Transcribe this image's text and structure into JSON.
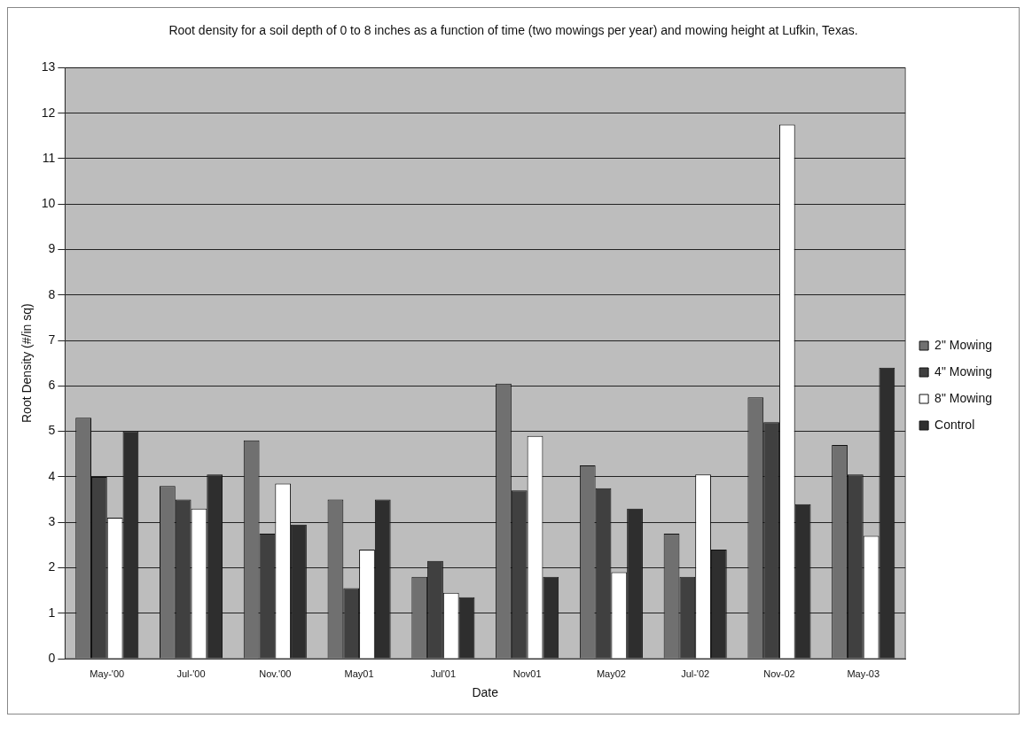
{
  "chart_data": {
    "type": "bar",
    "title": "Root density for a soil depth of 0 to 8 inches as a function of time (two mowings per year) and mowing height at Lufkin, Texas.",
    "xlabel": "Date",
    "ylabel": "Root Density (#/in sq)",
    "categories": [
      "May-'00",
      "Jul-'00",
      "Nov.'00",
      "May01",
      "Jul'01",
      "Nov01",
      "May02",
      "Jul-'02",
      "Nov-02",
      "May-03"
    ],
    "series": [
      {
        "name": "2\" Mowing",
        "color": "#707070",
        "values": [
          5.3,
          3.8,
          4.8,
          3.5,
          1.8,
          6.05,
          4.25,
          2.75,
          5.75,
          4.7
        ]
      },
      {
        "name": "4\" Mowing",
        "color": "#404040",
        "values": [
          4.0,
          3.5,
          2.75,
          1.55,
          2.15,
          3.7,
          3.75,
          1.8,
          5.2,
          4.05
        ]
      },
      {
        "name": "8\" Mowing",
        "color": "#ffffff",
        "values": [
          3.1,
          3.3,
          3.85,
          2.4,
          1.45,
          4.9,
          1.9,
          4.05,
          11.75,
          2.7
        ]
      },
      {
        "name": "Control",
        "color": "#2e2e2e",
        "values": [
          5.0,
          4.05,
          2.95,
          3.5,
          1.35,
          1.8,
          3.3,
          2.4,
          3.4,
          6.4
        ]
      }
    ],
    "ylim": [
      0,
      13
    ],
    "yticks": [
      0,
      1,
      2,
      3,
      4,
      5,
      6,
      7,
      8,
      9,
      10,
      11,
      12,
      13
    ],
    "grid": "y",
    "legend": "right"
  }
}
